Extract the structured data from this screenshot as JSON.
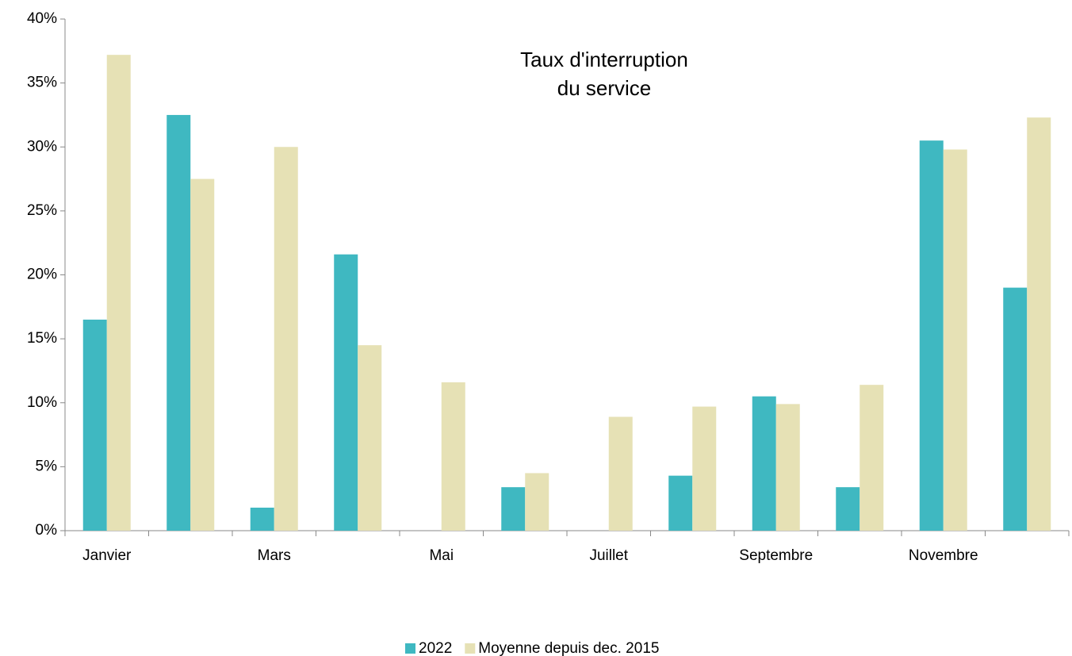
{
  "chart_data": {
    "type": "bar",
    "title": [
      "Taux d'interruption",
      "du service"
    ],
    "categories": [
      "Janvier",
      null,
      "Mars",
      null,
      "Mai",
      null,
      "Juillet",
      null,
      "Septembre",
      null,
      "Novembre",
      null
    ],
    "series": [
      {
        "name": "2022",
        "color": "#3fb8c1",
        "values": [
          16.5,
          32.5,
          1.8,
          21.6,
          0,
          3.4,
          0,
          4.3,
          10.5,
          3.4,
          30.5,
          19.0
        ]
      },
      {
        "name": "Moyenne depuis dec. 2015",
        "color": "#e6e1b5",
        "values": [
          37.2,
          27.5,
          30.0,
          14.5,
          11.6,
          4.5,
          8.9,
          9.7,
          9.9,
          11.4,
          29.8,
          32.3
        ]
      }
    ],
    "ylim": [
      0,
      40
    ],
    "yticks": [
      {
        "value": 0,
        "label": "0%"
      },
      {
        "value": 5,
        "label": "5%"
      },
      {
        "value": 10,
        "label": "10%"
      },
      {
        "value": 15,
        "label": "15%"
      },
      {
        "value": 20,
        "label": "20%"
      },
      {
        "value": 25,
        "label": "25%"
      },
      {
        "value": 30,
        "label": "30%"
      },
      {
        "value": 35,
        "label": "35%"
      },
      {
        "value": 40,
        "label": "40%"
      }
    ],
    "grid": false
  }
}
